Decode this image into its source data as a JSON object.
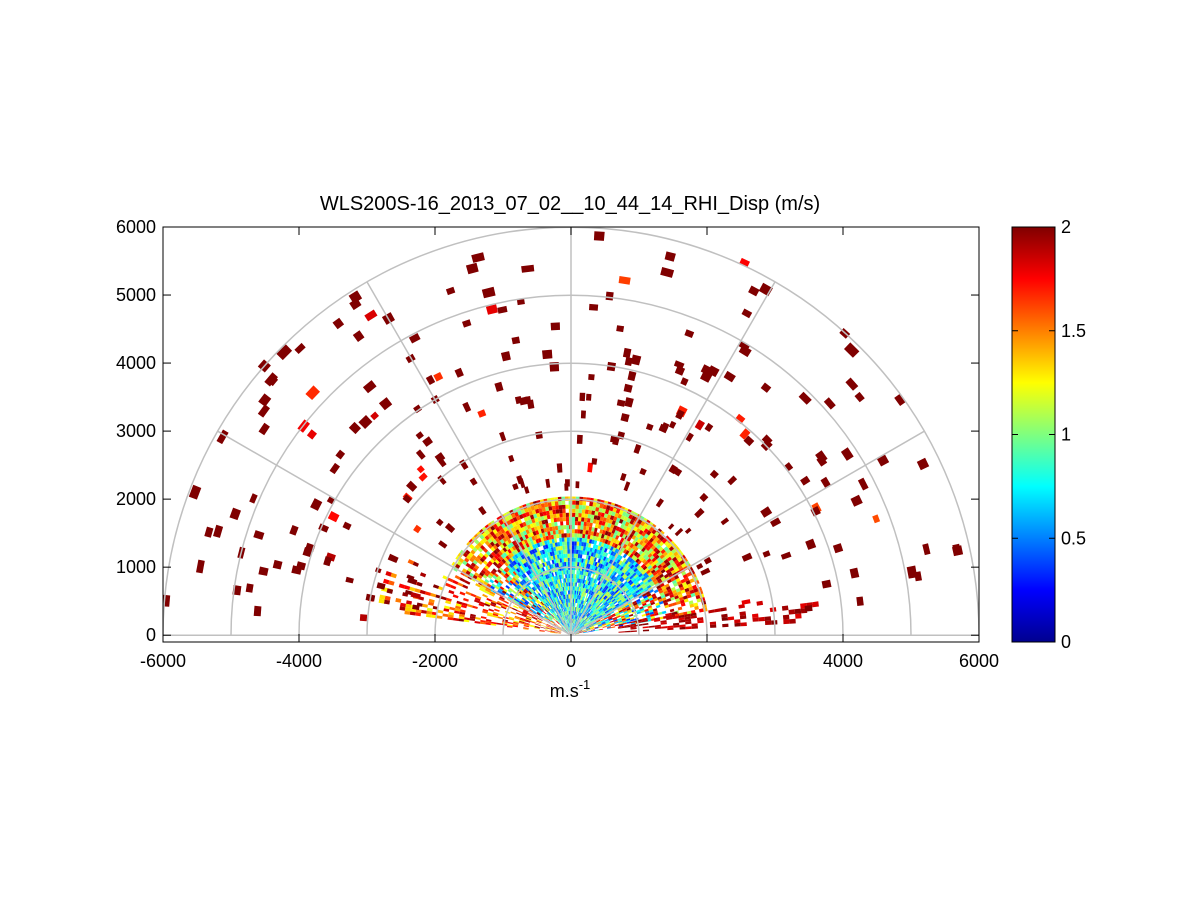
{
  "chart_data": {
    "type": "heatmap",
    "subtype": "polar-rhi-sector",
    "title": "WLS200S-16_2013_07_02__10_44_14_RHI_Disp (m/s)",
    "xlabel": "m.s",
    "xlabel_superscript": "-1",
    "ylabel": "",
    "xlim": [
      -6000,
      6000
    ],
    "ylim": [
      -100,
      6000
    ],
    "x_ticks": [
      -6000,
      -4000,
      -2000,
      0,
      2000,
      4000,
      6000
    ],
    "x_tick_labels": [
      "-6000",
      "-4000",
      "-2000",
      "0",
      "2000",
      "4000",
      "6000"
    ],
    "y_ticks": [
      0,
      1000,
      2000,
      3000,
      4000,
      5000,
      6000
    ],
    "y_tick_labels": [
      "0",
      "1000",
      "2000",
      "3000",
      "4000",
      "5000",
      "6000"
    ],
    "polar_grid": {
      "range_rings": [
        1000,
        2000,
        3000,
        4000,
        5000,
        6000
      ],
      "spokes_deg": [
        0,
        30,
        60,
        90,
        120,
        150,
        180
      ],
      "grid_color": "#c0c0c0"
    },
    "colorbar": {
      "min": 0,
      "max": 2,
      "ticks": [
        0,
        0.5,
        1,
        1.5,
        2
      ],
      "tick_labels": [
        "0",
        "0.5",
        "1",
        "1.5",
        "2"
      ],
      "colormap": "jet"
    },
    "series": [
      {
        "kind": "near-field sector",
        "range_max_m": 2000,
        "dominant_values": "0.3 - 1.2 (mixed blue/cyan/green) near origin, rising to ~1.3 - 2 toward 1800-2000 m"
      },
      {
        "kind": "far-field sparse cells",
        "range_max_m": 6000,
        "dominant_value": 2
      }
    ]
  },
  "colors": {
    "axis": "#000000",
    "grid": "#c0c0c0",
    "background": "#ffffff"
  }
}
